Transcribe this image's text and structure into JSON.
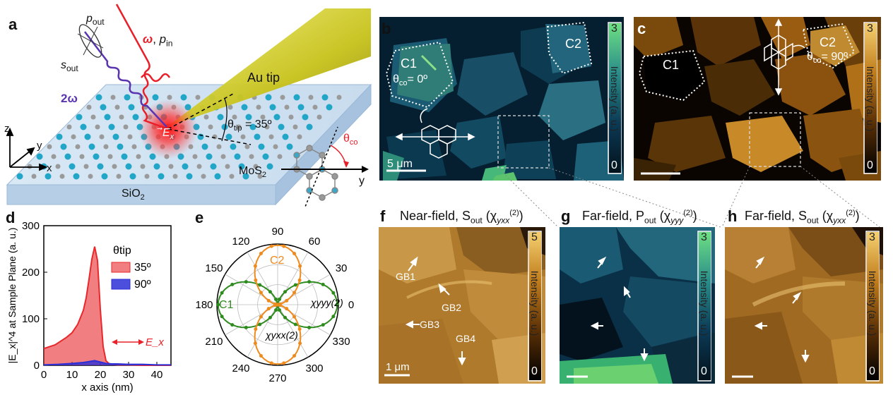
{
  "panels": {
    "a": "a",
    "b": "b",
    "c": "c",
    "d": "d",
    "e": "e",
    "f": "f",
    "g": "g",
    "h": "h"
  },
  "schematic": {
    "p_out": "p",
    "p_out_sub": "out",
    "s_out": "s",
    "s_out_sub": "out",
    "omega_label": "ω",
    "p_in": "p",
    "p_in_sub": "in",
    "two_omega": "2ω",
    "au_tip": "Au tip",
    "field": "E",
    "field_sub": "x",
    "theta_tip": "θ",
    "theta_tip_sub": "tip",
    "theta_tip_value": "= 35º",
    "theta_co": "θ",
    "theta_co_sub": "co",
    "axis_z": "z",
    "axis_y": "y",
    "axis_x": "x",
    "lattice_y": "y",
    "mos2": "MoS",
    "mos2_sub": "2",
    "sio2": "SiO",
    "sio2_sub": "2"
  },
  "map_b": {
    "c1": "C1",
    "c2": "C2",
    "theta": "θ",
    "theta_sub": "co",
    "theta_value": "= 0º",
    "scalebar": "5 μm",
    "cbar_max": "3",
    "cbar_min": "0",
    "cbar_label": "Intensity (a. u.)",
    "colors": {
      "low": "#00121f",
      "mid": "#1f6f86",
      "high": "#4ec27c"
    }
  },
  "map_c": {
    "c1": "C1",
    "c2": "C2",
    "theta": "θ",
    "theta_sub": "co",
    "theta_value": "= 90º",
    "cbar_max": "3",
    "cbar_min": "0",
    "cbar_label": "Intensity (a. u.)",
    "colors": {
      "low": "#000000",
      "mid": "#8a4f08",
      "high": "#f0c060"
    }
  },
  "panel_f": {
    "title": "Near-field, S",
    "title_sub": "out",
    "chi": "(χ",
    "chi_sub": "yxx",
    "chi_sup": "(2)",
    "chi_close": ")",
    "gb": [
      "GB1",
      "GB2",
      "GB3",
      "GB4"
    ],
    "scalebar": "1 μm",
    "cbar_max": "5",
    "cbar_min": "0",
    "cbar_label": "Intensity (a. u.)"
  },
  "panel_g": {
    "title": "Far-field, P",
    "title_sub": "out",
    "chi": "(χ",
    "chi_sub": "yyy",
    "chi_sup": "(2)",
    "chi_close": ")",
    "cbar_max": "3",
    "cbar_min": "0",
    "cbar_label": "Intensity (a. u.)"
  },
  "panel_h": {
    "title": "Far-field, S",
    "title_sub": "out",
    "chi": "(χ",
    "chi_sub": "yxx",
    "chi_sup": "(2)",
    "chi_close": ")",
    "cbar_max": "3",
    "cbar_min": "0",
    "cbar_label": "Intensity (a. u.)"
  },
  "chart_data": [
    {
      "type": "area",
      "panel": "d",
      "xlabel": "x axis (nm)",
      "ylabel": "|E_x|^4 at Sample Plane (a. u.)",
      "xlim": [
        0,
        45
      ],
      "ylim": [
        0,
        300
      ],
      "xticks": [
        0,
        10,
        20,
        30,
        40
      ],
      "yticks": [
        0,
        100,
        200,
        300
      ],
      "legend_title": "θtip",
      "legend_position": "top-right",
      "annotation": "E_x",
      "series": [
        {
          "name": "35º",
          "color": "#e8282b",
          "x": [
            0,
            2,
            4,
            6,
            8,
            10,
            12,
            14,
            15,
            16,
            17,
            18,
            19,
            20,
            21,
            22,
            23,
            24,
            26,
            30,
            35,
            40,
            45
          ],
          "y": [
            36,
            40,
            44,
            52,
            60,
            70,
            88,
            118,
            145,
            185,
            228,
            255,
            225,
            120,
            40,
            10,
            4,
            2,
            1,
            1,
            0,
            0,
            0
          ]
        },
        {
          "name": "90º",
          "color": "#2d2fd6",
          "x": [
            0,
            5,
            10,
            14,
            16,
            18,
            20,
            22,
            24,
            26,
            30,
            35,
            40,
            45
          ],
          "y": [
            1,
            2,
            4,
            6,
            8,
            10,
            7,
            4,
            3,
            3,
            2,
            2,
            1,
            1
          ]
        }
      ]
    },
    {
      "type": "polar",
      "panel": "e",
      "angle_ticks": [
        0,
        30,
        60,
        90,
        120,
        150,
        180,
        210,
        240,
        270,
        300,
        330
      ],
      "series": [
        {
          "name": "C1",
          "label": "χyyy(2)",
          "color": "#2e8b1e",
          "formula": "cos^2",
          "peak_angles": [
            0,
            180
          ]
        },
        {
          "name": "C2",
          "label": "χyxx(2)",
          "color": "#ef8a1c",
          "formula": "sin^2",
          "peak_angles": [
            90,
            270
          ]
        }
      ]
    }
  ]
}
